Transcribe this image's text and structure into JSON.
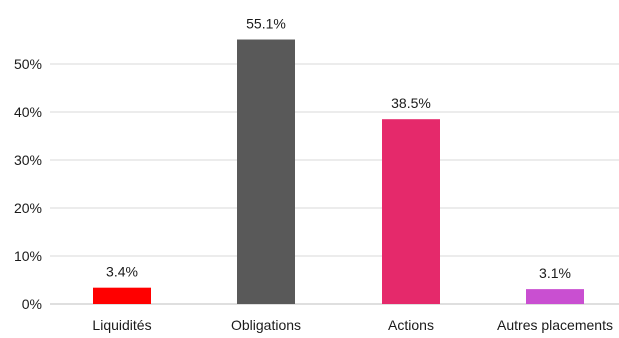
{
  "chart_data": {
    "type": "bar",
    "categories": [
      "Liquidités",
      "Obligations",
      "Actions",
      "Autres placements"
    ],
    "values": [
      3.4,
      55.1,
      38.5,
      3.1
    ],
    "data_labels": [
      "3.4%",
      "55.1%",
      "38.5%",
      "3.1%"
    ],
    "colors": [
      "#ff0000",
      "#595959",
      "#e5296b",
      "#c94fd1"
    ],
    "y_ticks": [
      0,
      10,
      20,
      30,
      40,
      50
    ],
    "y_tick_labels": [
      "0%",
      "10%",
      "20%",
      "30%",
      "40%",
      "50%"
    ],
    "ylim": [
      0,
      57
    ],
    "grid": true,
    "legend": "none"
  }
}
